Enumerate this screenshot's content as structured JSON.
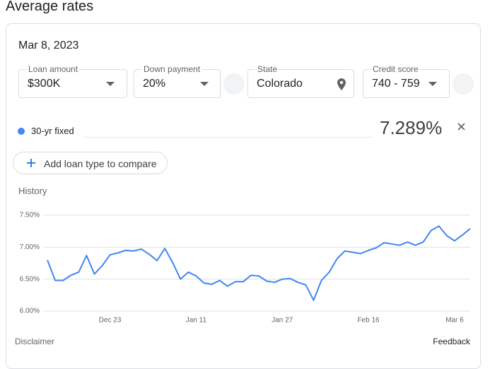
{
  "header": {
    "title": "Average rates"
  },
  "date": "Mar 8, 2023",
  "filters": [
    {
      "label": "Loan amount",
      "value": "$300K"
    },
    {
      "label": "Down payment",
      "value": "20%"
    },
    {
      "label": "State",
      "value": "Colorado"
    },
    {
      "label": "Credit score",
      "value": "740 - 759"
    }
  ],
  "rate": {
    "name": "30-yr fixed",
    "value": "7.289%"
  },
  "add_button": "Add loan type to compare",
  "history_label": "History",
  "chart_data": {
    "type": "line",
    "categories": [
      null,
      null,
      null,
      null,
      null,
      null,
      null,
      null,
      "Dec 23",
      null,
      null,
      null,
      null,
      null,
      null,
      null,
      null,
      null,
      null,
      "Jan 11",
      null,
      null,
      null,
      null,
      null,
      null,
      null,
      null,
      null,
      null,
      "Jan 27",
      null,
      null,
      null,
      null,
      null,
      null,
      null,
      null,
      null,
      null,
      "Feb 16",
      null,
      null,
      null,
      null,
      null,
      null,
      null,
      null,
      null,
      null,
      "Mar 6",
      null,
      null
    ],
    "values": [
      6.8,
      6.48,
      6.48,
      6.56,
      6.61,
      6.87,
      6.58,
      6.71,
      6.88,
      6.91,
      6.95,
      6.94,
      6.97,
      6.89,
      6.79,
      6.98,
      6.76,
      6.5,
      6.61,
      6.55,
      6.44,
      6.42,
      6.48,
      6.39,
      6.46,
      6.46,
      6.56,
      6.55,
      6.47,
      6.45,
      6.5,
      6.51,
      6.45,
      6.41,
      6.17,
      6.48,
      6.61,
      6.82,
      6.94,
      6.92,
      6.9,
      6.95,
      6.99,
      7.07,
      7.05,
      7.03,
      7.08,
      7.03,
      7.08,
      7.26,
      7.33,
      7.18,
      7.1,
      7.19,
      7.29
    ],
    "color": "#4285f4",
    "ylim": [
      6.0,
      7.5
    ],
    "yticks": [
      {
        "value": 6.0,
        "label": "6.00%"
      },
      {
        "value": 6.5,
        "label": "6.50%"
      },
      {
        "value": 7.0,
        "label": "7.00%"
      },
      {
        "value": 7.5,
        "label": "7.50%"
      }
    ],
    "grid": true
  },
  "footer": {
    "disclaimer": "Disclaimer",
    "feedback": "Feedback"
  }
}
